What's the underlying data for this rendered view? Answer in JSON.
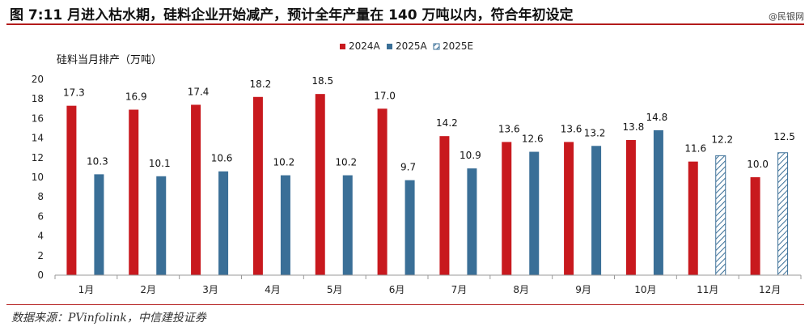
{
  "title": "图 7:11 月进入枯水期，硅料企业开始减产，预计全年产量在 140 万吨以内，符合年初设定",
  "watermark": "@民银网",
  "source": "数据来源：PVinfolink，中信建投证券",
  "colors": {
    "s2024": "#c8191e",
    "s2025": "#3a6f97",
    "s2025E": "#3a6f97",
    "rule": "#b31b1b"
  },
  "chart_data": {
    "type": "bar",
    "ylabel": "硅料当月排产（万吨）",
    "ylim": [
      0,
      20
    ],
    "yticks": [
      0,
      2,
      4,
      6,
      8,
      10,
      12,
      14,
      16,
      18,
      20
    ],
    "categories": [
      "1月",
      "2月",
      "3月",
      "4月",
      "5月",
      "6月",
      "7月",
      "8月",
      "9月",
      "10月",
      "11月",
      "12月"
    ],
    "legend_position": "top-center",
    "grid": false,
    "series": [
      {
        "name": "2024A",
        "style": "solid-red",
        "values": [
          17.3,
          16.9,
          17.4,
          18.2,
          18.5,
          17.0,
          14.2,
          13.6,
          13.6,
          13.8,
          11.6,
          10.0
        ]
      },
      {
        "name": "2025A",
        "style": "solid-blue",
        "values": [
          10.3,
          10.1,
          10.6,
          10.2,
          10.2,
          9.7,
          10.9,
          12.6,
          13.2,
          14.8,
          null,
          null
        ]
      },
      {
        "name": "2025E",
        "style": "hatched-blue",
        "values": [
          null,
          null,
          null,
          null,
          null,
          null,
          null,
          null,
          null,
          null,
          12.2,
          12.5
        ]
      }
    ],
    "data_labels": {
      "2024A": [
        "17.3",
        "16.9",
        "17.4",
        "18.2",
        "18.5",
        "17.0",
        "14.2",
        "13.6",
        "13.6",
        "13.8",
        "11.6",
        "10.0"
      ],
      "2025A": [
        "10.3",
        "10.1",
        "10.6",
        "10.2",
        "10.2",
        "9.7",
        "10.9",
        "12.6",
        "13.2",
        "14.8",
        "",
        ""
      ],
      "2025E": [
        "",
        "",
        "",
        "",
        "",
        "",
        "",
        "",
        "",
        "",
        "12.2",
        "12.5"
      ]
    }
  }
}
